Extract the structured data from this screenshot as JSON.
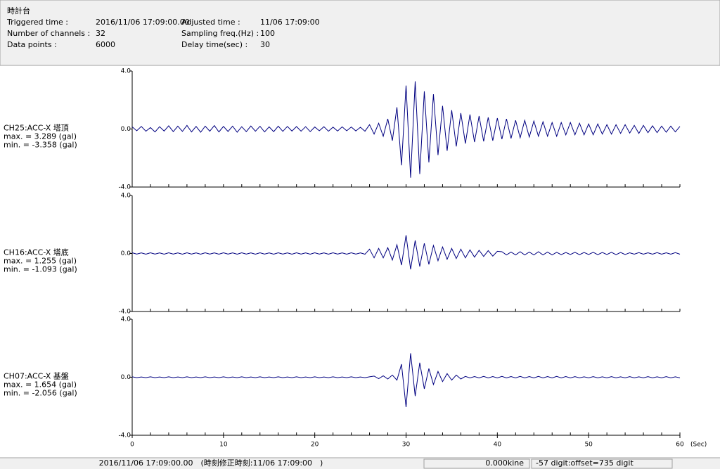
{
  "header": {
    "title": "時計台",
    "fields": [
      {
        "label": "Triggered time :",
        "value": "2016/11/06 17:09:00.00"
      },
      {
        "label": "Number of channels :",
        "value": "32"
      },
      {
        "label": "Data points :",
        "value": "6000"
      },
      {
        "label": "Adjusted time :",
        "value": "11/06 17:09:00"
      },
      {
        "label": "Sampling freq.(Hz) :",
        "value": "100"
      },
      {
        "label": "Delay time(sec) :",
        "value": "30"
      }
    ]
  },
  "chart_data": [
    {
      "type": "line",
      "channel": "CH25:ACC-X 塔頂",
      "max_label": "max. = 3.289 (gal)",
      "min_label": "min. = -3.358 (gal)",
      "color": "#000080",
      "xlim": [
        0,
        60
      ],
      "ylim": [
        -4,
        4
      ],
      "yticks": [
        {
          "value": 4,
          "label": "4.0"
        },
        {
          "value": 0,
          "label": "0.0"
        },
        {
          "value": -4,
          "label": "-4.0"
        }
      ],
      "x": [
        0,
        0.5,
        1,
        1.5,
        2,
        2.5,
        3,
        3.5,
        4,
        4.5,
        5,
        5.5,
        6,
        6.5,
        7,
        7.5,
        8,
        8.5,
        9,
        9.5,
        10,
        10.5,
        11,
        11.5,
        12,
        12.5,
        13,
        13.5,
        14,
        14.5,
        15,
        15.5,
        16,
        16.5,
        17,
        17.5,
        18,
        18.5,
        19,
        19.5,
        20,
        20.5,
        21,
        21.5,
        22,
        22.5,
        23,
        23.5,
        24,
        24.5,
        25,
        25.5,
        26,
        26.5,
        27,
        27.5,
        28,
        28.5,
        29,
        29.5,
        30,
        30.5,
        31,
        31.5,
        32,
        32.5,
        33,
        33.5,
        34,
        34.5,
        35,
        35.5,
        36,
        36.5,
        37,
        37.5,
        38,
        38.5,
        39,
        39.5,
        40,
        40.5,
        41,
        41.5,
        42,
        42.5,
        43,
        43.5,
        44,
        44.5,
        45,
        45.5,
        46,
        46.5,
        47,
        47.5,
        48,
        48.5,
        49,
        49.5,
        50,
        50.5,
        51,
        51.5,
        52,
        52.5,
        53,
        53.5,
        54,
        54.5,
        55,
        55.5,
        56,
        56.5,
        57,
        57.5,
        58,
        58.5,
        59,
        59.5,
        60
      ],
      "values": [
        0.15,
        -0.12,
        0.18,
        -0.15,
        0.1,
        -0.2,
        0.16,
        -0.14,
        0.22,
        -0.18,
        0.2,
        -0.16,
        0.25,
        -0.2,
        0.18,
        -0.22,
        0.2,
        -0.15,
        0.24,
        -0.2,
        0.18,
        -0.17,
        0.2,
        -0.22,
        0.16,
        -0.18,
        0.21,
        -0.15,
        0.19,
        -0.2,
        0.15,
        -0.18,
        0.2,
        -0.16,
        0.18,
        -0.14,
        0.17,
        -0.15,
        0.16,
        -0.18,
        0.14,
        -0.12,
        0.16,
        -0.15,
        0.13,
        -0.14,
        0.15,
        -0.12,
        0.14,
        -0.13,
        0.12,
        -0.15,
        0.3,
        -0.35,
        0.4,
        -0.5,
        0.7,
        -0.8,
        1.5,
        -2.5,
        3.0,
        -3.358,
        3.289,
        -3.1,
        2.6,
        -2.3,
        2.4,
        -1.8,
        1.6,
        -1.5,
        1.3,
        -1.2,
        1.1,
        -1.0,
        1.0,
        -0.9,
        0.9,
        -0.85,
        0.8,
        -0.8,
        0.75,
        -0.7,
        0.7,
        -0.65,
        0.6,
        -0.6,
        0.6,
        -0.55,
        0.55,
        -0.5,
        0.5,
        -0.5,
        0.45,
        -0.5,
        0.45,
        -0.4,
        0.45,
        -0.4,
        0.4,
        -0.4,
        0.35,
        -0.4,
        0.35,
        -0.35,
        0.3,
        -0.35,
        0.3,
        -0.3,
        0.3,
        -0.28,
        0.25,
        -0.3,
        0.25,
        -0.25,
        0.22,
        -0.25,
        0.2,
        -0.22,
        0.2,
        -0.2,
        0.18
      ]
    },
    {
      "type": "line",
      "channel": "CH16:ACC-X 塔底",
      "max_label": "max. = 1.255 (gal)",
      "min_label": "min. = -1.093 (gal)",
      "color": "#000080",
      "xlim": [
        0,
        60
      ],
      "ylim": [
        -4,
        4
      ],
      "yticks": [
        {
          "value": 4,
          "label": "4.0"
        },
        {
          "value": 0,
          "label": "0.0"
        },
        {
          "value": -4,
          "label": "-4.0"
        }
      ],
      "x": [
        0,
        0.5,
        1,
        1.5,
        2,
        2.5,
        3,
        3.5,
        4,
        4.5,
        5,
        5.5,
        6,
        6.5,
        7,
        7.5,
        8,
        8.5,
        9,
        9.5,
        10,
        10.5,
        11,
        11.5,
        12,
        12.5,
        13,
        13.5,
        14,
        14.5,
        15,
        15.5,
        16,
        16.5,
        17,
        17.5,
        18,
        18.5,
        19,
        19.5,
        20,
        20.5,
        21,
        21.5,
        22,
        22.5,
        23,
        23.5,
        24,
        24.5,
        25,
        25.5,
        26,
        26.5,
        27,
        27.5,
        28,
        28.5,
        29,
        29.5,
        30,
        30.5,
        31,
        31.5,
        32,
        32.5,
        33,
        33.5,
        34,
        34.5,
        35,
        35.5,
        36,
        36.5,
        37,
        37.5,
        38,
        38.5,
        39,
        39.5,
        40,
        40.5,
        41,
        41.5,
        42,
        42.5,
        43,
        43.5,
        44,
        44.5,
        45,
        45.5,
        46,
        46.5,
        47,
        47.5,
        48,
        48.5,
        49,
        49.5,
        50,
        50.5,
        51,
        51.5,
        52,
        52.5,
        53,
        53.5,
        54,
        54.5,
        55,
        55.5,
        56,
        56.5,
        57,
        57.5,
        58,
        58.5,
        59,
        59.5,
        60
      ],
      "values": [
        0.05,
        -0.04,
        0.04,
        -0.05,
        0.05,
        -0.04,
        0.04,
        -0.05,
        0.05,
        -0.04,
        0.04,
        -0.05,
        0.05,
        -0.04,
        0.04,
        -0.05,
        0.05,
        -0.04,
        0.04,
        -0.05,
        0.05,
        -0.04,
        0.04,
        -0.05,
        0.05,
        -0.04,
        0.04,
        -0.05,
        0.05,
        -0.04,
        0.04,
        -0.05,
        0.05,
        -0.04,
        0.04,
        -0.05,
        0.05,
        -0.04,
        0.04,
        -0.05,
        0.05,
        -0.04,
        0.04,
        -0.05,
        0.05,
        -0.04,
        0.04,
        -0.05,
        0.05,
        -0.04,
        0.04,
        -0.05,
        0.3,
        -0.3,
        0.35,
        -0.3,
        0.4,
        -0.45,
        0.6,
        -0.8,
        1.255,
        -1.093,
        0.9,
        -0.9,
        0.7,
        -0.75,
        0.55,
        -0.5,
        0.45,
        -0.4,
        0.35,
        -0.35,
        0.3,
        -0.3,
        0.25,
        -0.25,
        0.22,
        -0.2,
        0.2,
        -0.18,
        0.15,
        0.12,
        -0.1,
        0.1,
        -0.1,
        0.12,
        -0.1,
        0.1,
        -0.1,
        0.12,
        -0.1,
        0.1,
        -0.1,
        0.08,
        -0.08,
        0.07,
        -0.07,
        0.08,
        -0.08,
        0.07,
        -0.07,
        0.08,
        -0.08,
        0.07,
        -0.07,
        0.08,
        -0.08,
        0.07,
        -0.07,
        0.05,
        -0.05,
        0.06,
        -0.05,
        0.05,
        -0.05,
        0.06,
        -0.05,
        0.05,
        -0.05,
        0.06,
        -0.05
      ]
    },
    {
      "type": "line",
      "channel": "CH07:ACC-X 基盤",
      "max_label": "max. = 1.654 (gal)",
      "min_label": "min. = -2.056 (gal)",
      "color": "#000080",
      "xlim": [
        0,
        60
      ],
      "ylim": [
        -4,
        4
      ],
      "yticks": [
        {
          "value": 4,
          "label": "4.0"
        },
        {
          "value": 0,
          "label": "0.0"
        },
        {
          "value": -4,
          "label": "-4.0"
        }
      ],
      "xticks": [
        0,
        10,
        20,
        30,
        40,
        50,
        60
      ],
      "x_label": "(Sec)",
      "x": [
        0,
        0.5,
        1,
        1.5,
        2,
        2.5,
        3,
        3.5,
        4,
        4.5,
        5,
        5.5,
        6,
        6.5,
        7,
        7.5,
        8,
        8.5,
        9,
        9.5,
        10,
        10.5,
        11,
        11.5,
        12,
        12.5,
        13,
        13.5,
        14,
        14.5,
        15,
        15.5,
        16,
        16.5,
        17,
        17.5,
        18,
        18.5,
        19,
        19.5,
        20,
        20.5,
        21,
        21.5,
        22,
        22.5,
        23,
        23.5,
        24,
        24.5,
        25,
        25.5,
        26,
        26.5,
        27,
        27.5,
        28,
        28.5,
        29,
        29.5,
        30,
        30.5,
        31,
        31.5,
        32,
        32.5,
        33,
        33.5,
        34,
        34.5,
        35,
        35.5,
        36,
        36.5,
        37,
        37.5,
        38,
        38.5,
        39,
        39.5,
        40,
        40.5,
        41,
        41.5,
        42,
        42.5,
        43,
        43.5,
        44,
        44.5,
        45,
        45.5,
        46,
        46.5,
        47,
        47.5,
        48,
        48.5,
        49,
        49.5,
        50,
        50.5,
        51,
        51.5,
        52,
        52.5,
        53,
        53.5,
        54,
        54.5,
        55,
        55.5,
        56,
        56.5,
        57,
        57.5,
        58,
        58.5,
        59,
        59.5,
        60
      ],
      "values": [
        0.03,
        -0.03,
        0.02,
        -0.03,
        0.03,
        -0.03,
        0.02,
        -0.03,
        0.03,
        -0.03,
        0.02,
        -0.03,
        0.03,
        -0.03,
        0.02,
        -0.03,
        0.03,
        -0.03,
        0.02,
        -0.03,
        0.03,
        -0.03,
        0.02,
        -0.03,
        0.03,
        -0.03,
        0.02,
        -0.03,
        0.03,
        -0.03,
        0.02,
        -0.03,
        0.03,
        -0.03,
        0.02,
        -0.03,
        0.03,
        -0.03,
        0.02,
        -0.03,
        0.03,
        -0.03,
        0.02,
        -0.03,
        0.03,
        -0.03,
        0.02,
        -0.03,
        0.03,
        -0.03,
        0.02,
        -0.03,
        0.03,
        0.08,
        -0.1,
        0.1,
        -0.12,
        0.15,
        -0.2,
        0.9,
        -2.056,
        1.654,
        -1.3,
        1.0,
        -0.8,
        0.6,
        -0.5,
        0.4,
        -0.3,
        0.25,
        -0.2,
        0.15,
        -0.12,
        0.06,
        -0.05,
        0.05,
        -0.05,
        0.06,
        -0.05,
        0.05,
        -0.05,
        0.06,
        -0.05,
        0.05,
        -0.05,
        0.06,
        -0.05,
        0.05,
        -0.05,
        0.06,
        -0.05,
        0.05,
        -0.05,
        0.06,
        -0.05,
        0.05,
        -0.05,
        0.04,
        -0.04,
        0.03,
        -0.04,
        0.04,
        -0.04,
        0.03,
        -0.04,
        0.04,
        -0.04,
        0.03,
        -0.04,
        0.04,
        -0.04,
        0.03,
        -0.04,
        0.04,
        -0.04,
        0.03,
        -0.04,
        0.04,
        -0.04,
        0.03,
        -0.04
      ]
    }
  ],
  "status_bar": [
    "2016/11/06 17:09:00.00　(時刻修正時刻:11/06 17:09:00　)",
    "0.000kine",
    "-57 digit:offset=735 digit"
  ]
}
